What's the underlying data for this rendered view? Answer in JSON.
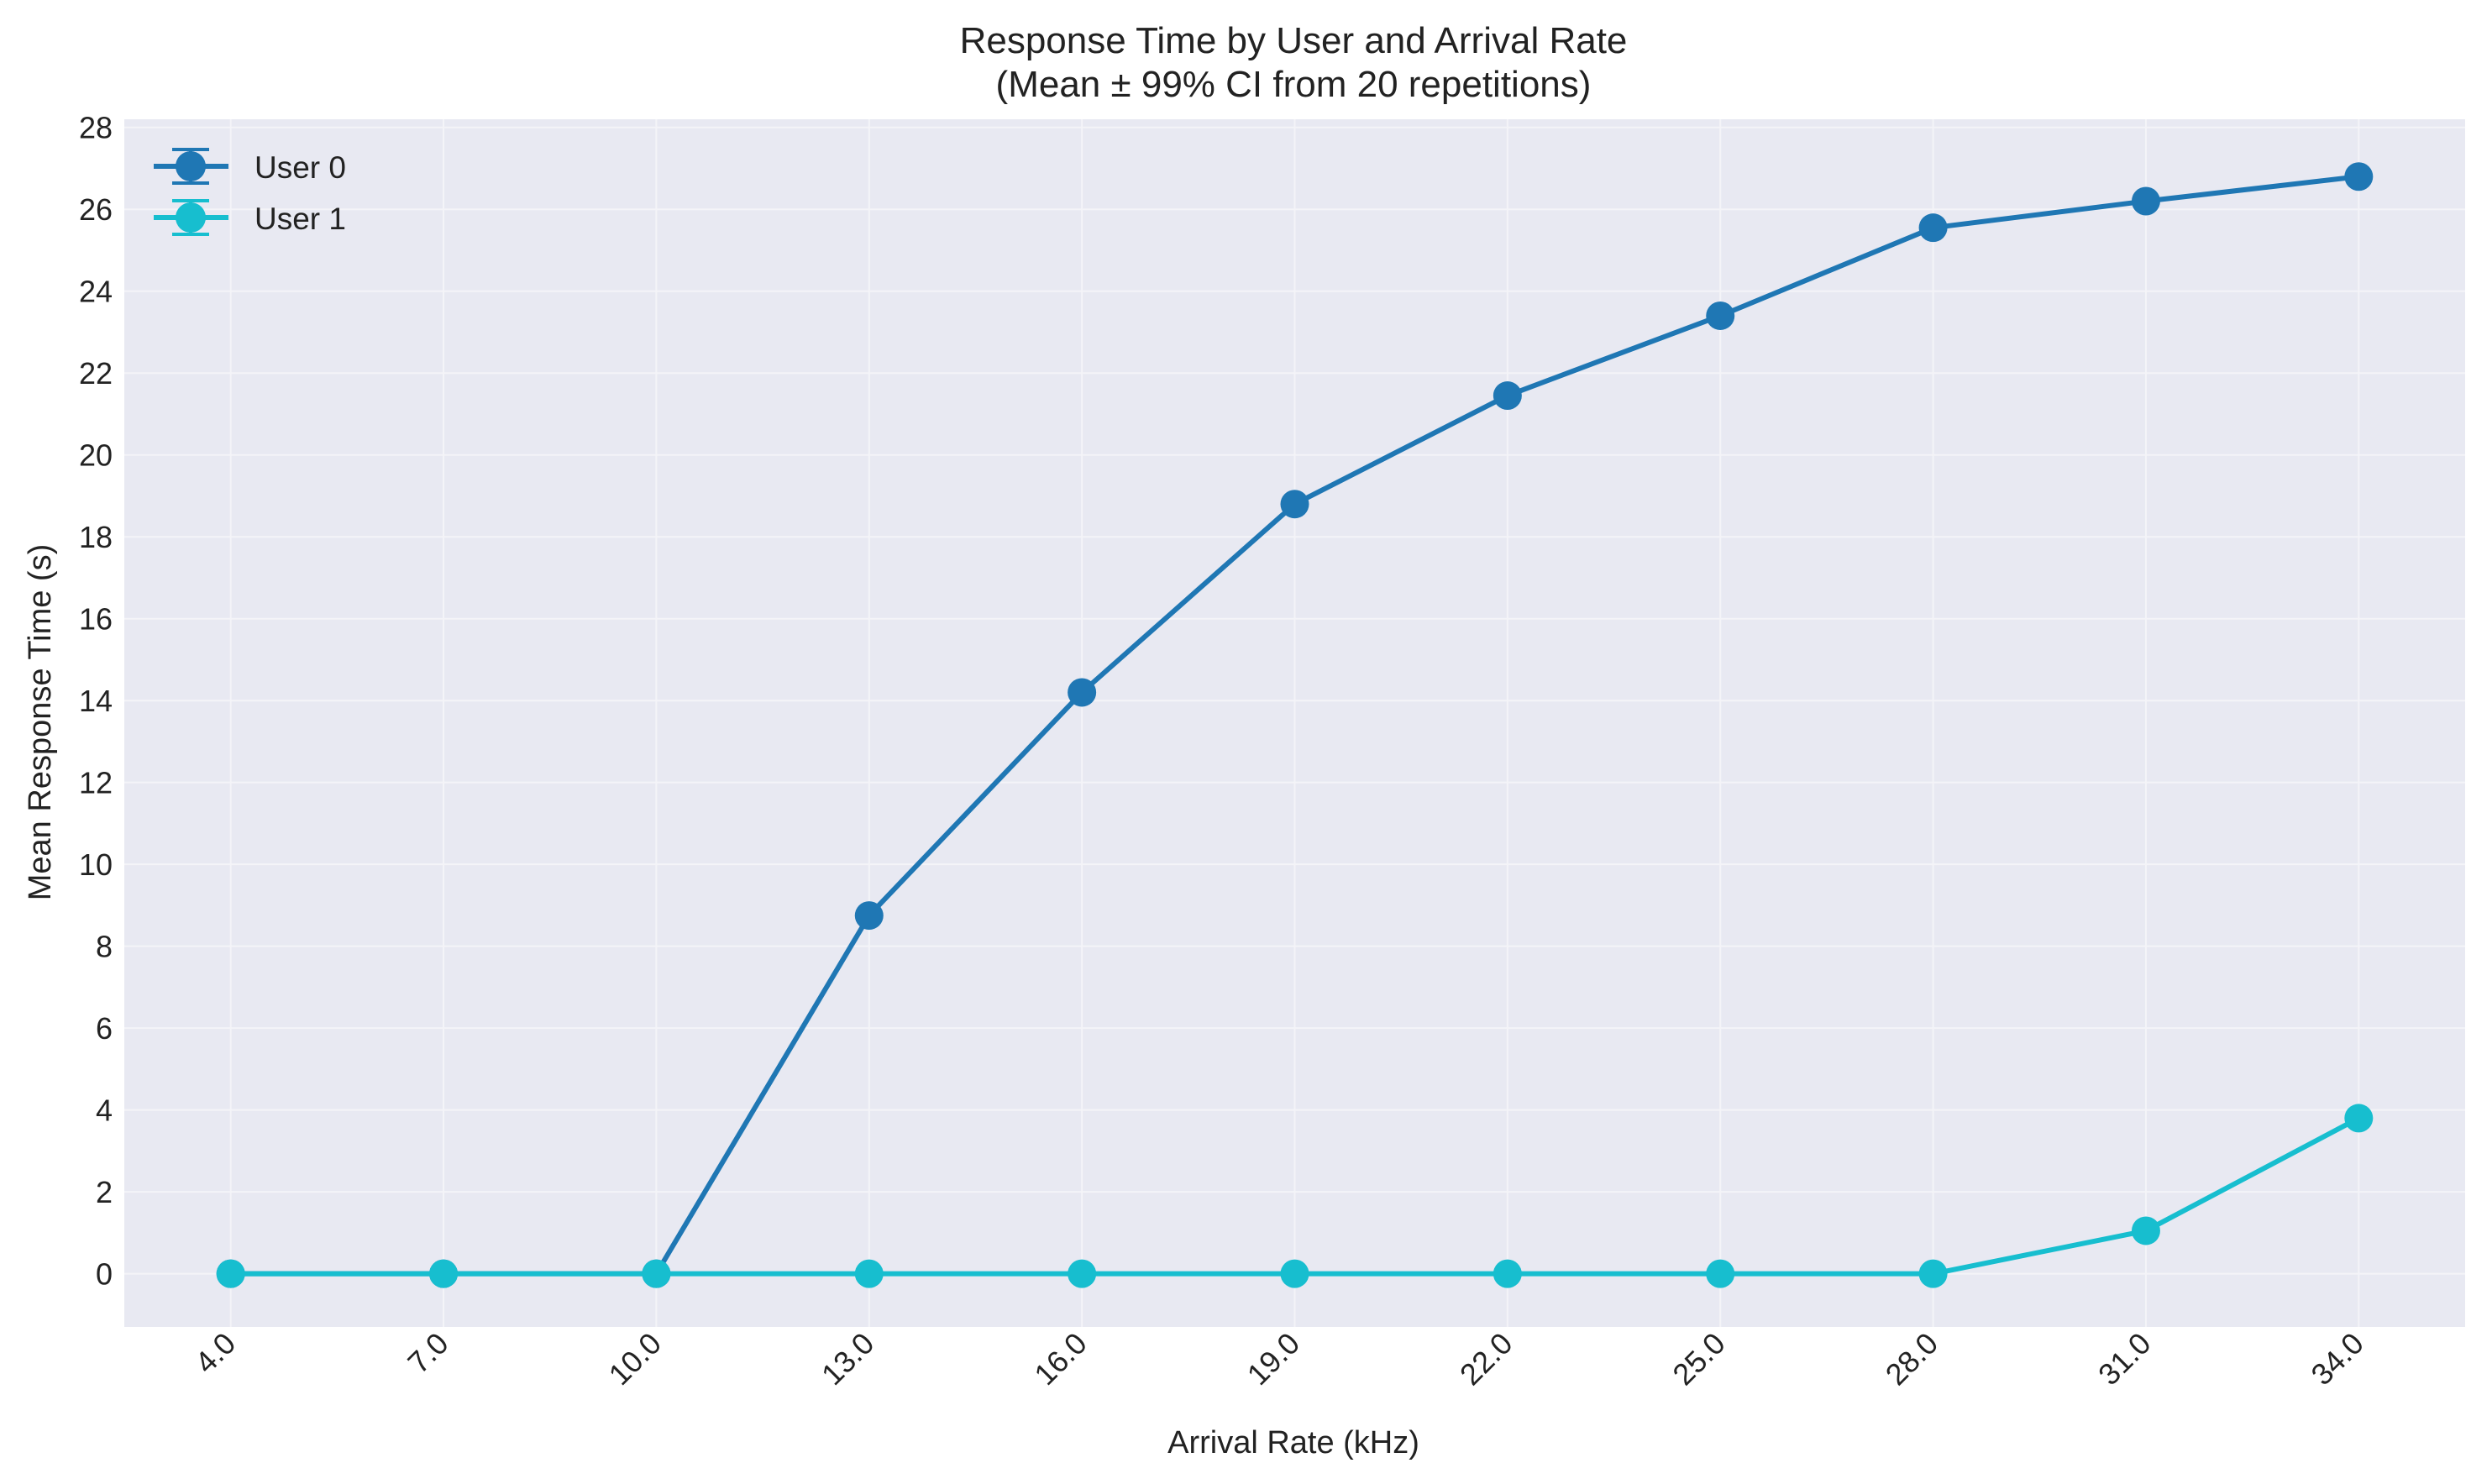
{
  "chart_data": {
    "type": "line",
    "title": "Response Time by User and Arrival Rate",
    "subtitle": "(Mean ± 99% CI from 20 repetitions)",
    "xlabel": "Arrival Rate (kHz)",
    "ylabel": "Mean Response Time (s)",
    "x": [
      4.0,
      7.0,
      10.0,
      13.0,
      16.0,
      19.0,
      22.0,
      25.0,
      28.0,
      31.0,
      34.0
    ],
    "x_tick_labels": [
      "4.0",
      "7.0",
      "10.0",
      "13.0",
      "16.0",
      "19.0",
      "22.0",
      "25.0",
      "28.0",
      "31.0",
      "34.0"
    ],
    "y_tick_values": [
      0,
      2,
      4,
      6,
      8,
      10,
      12,
      14,
      16,
      18,
      20,
      22,
      24,
      26,
      28
    ],
    "y_tick_labels": [
      "0",
      "2",
      "4",
      "6",
      "8",
      "10",
      "12",
      "14",
      "16",
      "18",
      "20",
      "22",
      "24",
      "26",
      "28"
    ],
    "ylim": [
      -1.3,
      28.2
    ],
    "xlim": [
      2.5,
      35.5
    ],
    "grid": true,
    "legend_position": "top-left",
    "series": [
      {
        "name": "User 0",
        "color": "#1f77b4",
        "values": [
          0.0,
          0.0,
          0.0,
          8.75,
          14.2,
          18.8,
          21.45,
          23.4,
          25.55,
          26.2,
          26.8
        ]
      },
      {
        "name": "User 1",
        "color": "#17becf",
        "values": [
          0.0,
          0.0,
          0.0,
          0.0,
          0.0,
          0.0,
          0.0,
          0.0,
          0.0,
          1.05,
          3.8
        ]
      }
    ],
    "colors": {
      "plot_background": "#e8e9f2",
      "grid": "#f4f4f8"
    }
  }
}
